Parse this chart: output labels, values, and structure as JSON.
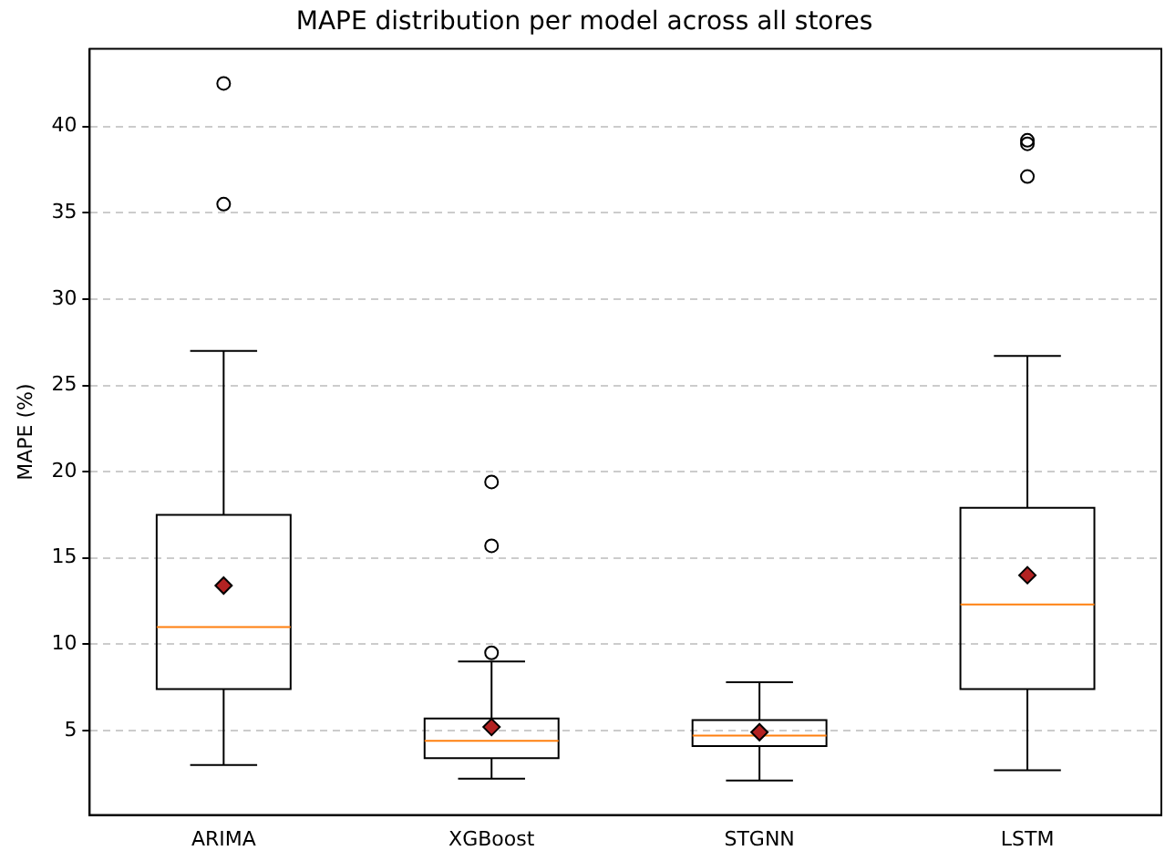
{
  "chart_data": {
    "type": "box",
    "title": "MAPE distribution per model across all stores",
    "ylabel": "MAPE (%)",
    "categories": [
      "ARIMA",
      "XGBoost",
      "STGNN",
      "LSTM"
    ],
    "boxes": [
      {
        "low": 3.0,
        "q1": 7.4,
        "median": 11.0,
        "q3": 17.5,
        "high": 27.0,
        "mean": 13.4,
        "outliers": [
          42.5,
          35.5
        ]
      },
      {
        "low": 2.2,
        "q1": 3.4,
        "median": 4.4,
        "q3": 5.7,
        "high": 9.0,
        "mean": 5.2,
        "outliers": [
          19.4,
          15.7,
          9.5
        ]
      },
      {
        "low": 2.1,
        "q1": 4.1,
        "median": 4.7,
        "q3": 5.6,
        "high": 7.8,
        "mean": 4.9
      },
      {
        "low": 2.7,
        "q1": 7.4,
        "median": 12.3,
        "q3": 17.9,
        "high": 26.7,
        "mean": 14.0,
        "outliers": [
          39.2,
          39.0,
          37.1
        ]
      }
    ],
    "color": "#000000",
    "marker": "diamond",
    "ylim": [
      0.1,
      44.5
    ],
    "yticks": [
      5,
      10,
      15,
      20,
      25,
      30,
      35,
      40
    ],
    "grid": "y",
    "legend": false
  }
}
